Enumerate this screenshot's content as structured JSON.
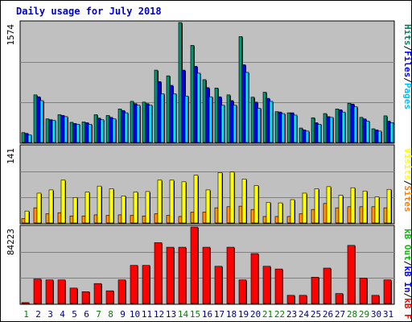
{
  "title": "Daily usage for July 2018",
  "colors": {
    "hits": "#008060",
    "files": "#0000ff",
    "pages": "#00c0ff",
    "visits": "#ffff00",
    "sites": "#ff8000",
    "kbin": "#ff0000",
    "kbout": "#00c000",
    "weekend_day": "#008000",
    "weekday": "#000080"
  },
  "chart_data": [
    {
      "type": "bar",
      "panel": "hits-files-pages",
      "ymax_label": "1574",
      "ymax": 1574,
      "axis_labels": [
        "Pages",
        "Files",
        "Hits"
      ],
      "categories": [
        "1",
        "2",
        "3",
        "4",
        "5",
        "6",
        "7",
        "8",
        "9",
        "10",
        "11",
        "12",
        "13",
        "14",
        "15",
        "16",
        "17",
        "18",
        "19",
        "20",
        "21",
        "22",
        "23",
        "24",
        "25",
        "26",
        "27",
        "28",
        "29",
        "30",
        "31"
      ],
      "weekend": [
        "1",
        "7",
        "8",
        "14",
        "15",
        "21",
        "22",
        "28",
        "29"
      ],
      "series": [
        {
          "name": "Hits",
          "values": [
            130,
            625,
            310,
            365,
            265,
            270,
            365,
            355,
            440,
            540,
            530,
            950,
            875,
            1574,
            1275,
            825,
            715,
            625,
            1390,
            595,
            660,
            405,
            390,
            190,
            325,
            380,
            440,
            515,
            330,
            180,
            350
          ]
        },
        {
          "name": "Files",
          "values": [
            120,
            600,
            300,
            355,
            250,
            260,
            320,
            330,
            420,
            510,
            510,
            800,
            750,
            950,
            1000,
            720,
            600,
            550,
            1020,
            530,
            580,
            400,
            390,
            165,
            260,
            340,
            430,
            505,
            310,
            165,
            280
          ]
        },
        {
          "name": "Pages",
          "values": [
            100,
            550,
            290,
            340,
            240,
            240,
            300,
            310,
            390,
            490,
            490,
            640,
            640,
            610,
            910,
            600,
            490,
            490,
            920,
            450,
            540,
            380,
            360,
            150,
            240,
            330,
            400,
            470,
            280,
            150,
            260
          ]
        }
      ]
    },
    {
      "type": "bar",
      "panel": "visits-sites",
      "ymax_label": "141",
      "ymax": 141,
      "axis_labels": [
        "Sites",
        "Visits"
      ],
      "categories": [
        "1",
        "2",
        "3",
        "4",
        "5",
        "6",
        "7",
        "8",
        "9",
        "10",
        "11",
        "12",
        "13",
        "14",
        "15",
        "16",
        "17",
        "18",
        "19",
        "20",
        "21",
        "22",
        "23",
        "24",
        "25",
        "26",
        "27",
        "28",
        "29",
        "30",
        "31"
      ],
      "series": [
        {
          "name": "Sites",
          "values": [
            8,
            28,
            17,
            19,
            13,
            13,
            15,
            14,
            15,
            14,
            13,
            17,
            14,
            12,
            20,
            20,
            28,
            30,
            31,
            25,
            12,
            12,
            12,
            17,
            25,
            36,
            28,
            30,
            30,
            30,
            28
          ]
        },
        {
          "name": "Visits",
          "values": [
            22,
            55,
            61,
            79,
            47,
            57,
            68,
            63,
            50,
            57,
            58,
            79,
            79,
            76,
            88,
            61,
            93,
            94,
            81,
            69,
            38,
            37,
            43,
            55,
            63,
            67,
            51,
            65,
            59,
            48,
            62
          ]
        }
      ]
    },
    {
      "type": "bar",
      "panel": "kbf-kbin-kbout",
      "ymax_label": "84223",
      "ymax": 84223,
      "axis_labels": [
        "kB F",
        "kB In",
        "kB Out"
      ],
      "categories": [
        "1",
        "2",
        "3",
        "4",
        "5",
        "6",
        "7",
        "8",
        "9",
        "10",
        "11",
        "12",
        "13",
        "14",
        "15",
        "16",
        "17",
        "18",
        "19",
        "20",
        "21",
        "22",
        "23",
        "24",
        "25",
        "26",
        "27",
        "28",
        "29",
        "30",
        "31"
      ],
      "series": [
        {
          "name": "kB F",
          "values": [
            1000,
            27000,
            26000,
            26000,
            17000,
            13000,
            22000,
            14000,
            26000,
            42000,
            42000,
            67000,
            62000,
            62000,
            84223,
            62000,
            41000,
            62000,
            26000,
            55000,
            41000,
            38000,
            9000,
            9000,
            29000,
            39000,
            11000,
            64000,
            28000,
            9000,
            26000
          ]
        }
      ]
    }
  ]
}
